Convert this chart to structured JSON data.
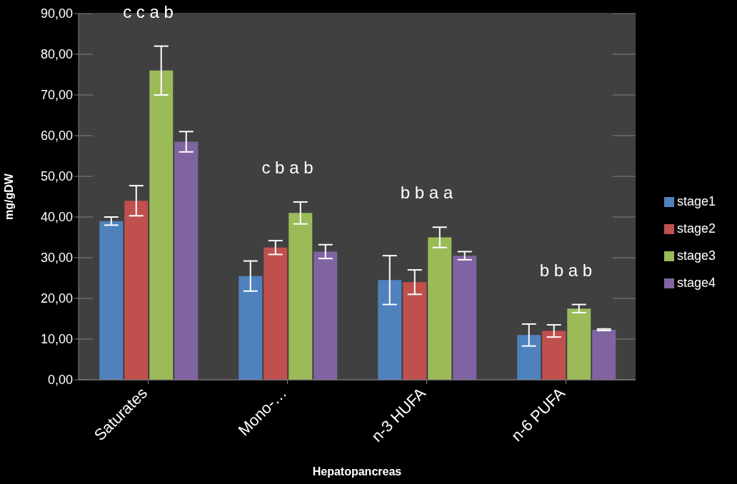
{
  "chart_data": {
    "type": "bar",
    "xlabel": "Hepatopancreas",
    "ylabel": "mg/gDW",
    "categories": [
      "Saturates",
      "Mono-…",
      "n-3 HUFA",
      "n-6 PUFA"
    ],
    "series": [
      {
        "name": "stage1",
        "color": "#4f81bd",
        "values": [
          39,
          25.5,
          24.5,
          11
        ],
        "errors": [
          1,
          3.7,
          6,
          2.7
        ]
      },
      {
        "name": "stage2",
        "color": "#c0504d",
        "values": [
          44,
          32.5,
          24,
          12
        ],
        "errors": [
          3.7,
          1.7,
          3,
          1.5
        ]
      },
      {
        "name": "stage3",
        "color": "#9bbb59",
        "values": [
          76,
          41,
          35,
          17.5
        ],
        "errors": [
          6,
          2.7,
          2.5,
          1
        ]
      },
      {
        "name": "stage4",
        "color": "#8064a2",
        "values": [
          58.5,
          31.5,
          30.5,
          12.3
        ],
        "errors": [
          2.5,
          1.7,
          1,
          0.2
        ]
      }
    ],
    "ylim": [
      0,
      90
    ],
    "yticks": [
      {
        "value": 0,
        "label": "0,00"
      },
      {
        "value": 10,
        "label": "10,00"
      },
      {
        "value": 20,
        "label": "20,00"
      },
      {
        "value": 30,
        "label": "30,00"
      },
      {
        "value": 40,
        "label": "40,00"
      },
      {
        "value": 50,
        "label": "50,00"
      },
      {
        "value": 60,
        "label": "60,00"
      },
      {
        "value": 70,
        "label": "70,00"
      },
      {
        "value": 80,
        "label": "80,00"
      },
      {
        "value": 90,
        "label": "90,00"
      }
    ],
    "annotations": [
      "c c a b",
      "c b a b",
      "b b a a",
      "b b a b"
    ],
    "grid": "y",
    "legend": "right"
  }
}
